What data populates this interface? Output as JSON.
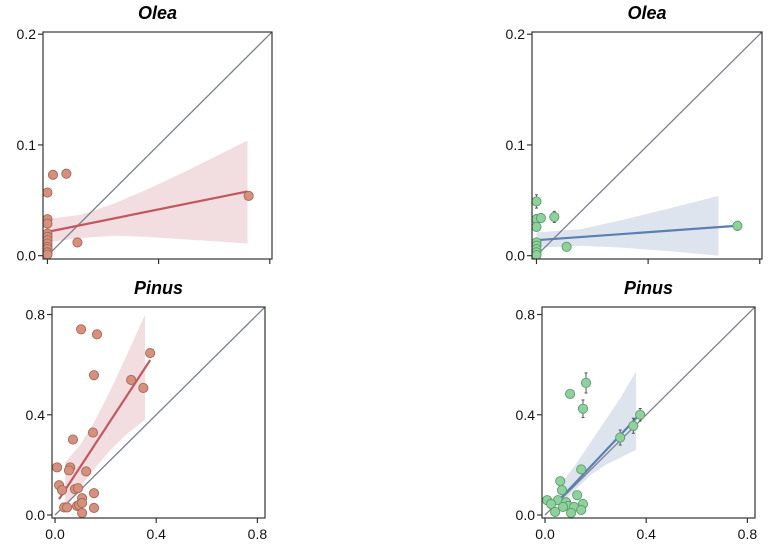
{
  "chart_data": [
    {
      "type": "scatter",
      "panel": "top-left",
      "title": "Olea",
      "xlabel": "",
      "ylabel": "",
      "xlim": [
        -0.004,
        0.202
      ],
      "ylim": [
        -0.003,
        0.202
      ],
      "xticks": [
        0.0,
        0.1,
        0.2
      ],
      "xtick_labels": [
        "",
        "",
        ""
      ],
      "yticks": [
        0.0,
        0.1,
        0.2
      ],
      "ytick_labels": [
        "0.0",
        "0.1",
        "0.2"
      ],
      "grid": false,
      "identity_line": true,
      "colors": {
        "point_fill": "#d6917c",
        "point_stroke": "#a4675b",
        "line": "#c4575d",
        "band": "#f2dde0",
        "identity": "#7a8090"
      },
      "error_bars": false,
      "points": [
        {
          "x": 0.005,
          "y": 0.073
        },
        {
          "x": 0.017,
          "y": 0.074
        },
        {
          "x": 0.0,
          "y": 0.057
        },
        {
          "x": 0.0,
          "y": 0.033
        },
        {
          "x": 0.0,
          "y": 0.029
        },
        {
          "x": 0.0,
          "y": 0.02
        },
        {
          "x": 0.0,
          "y": 0.017
        },
        {
          "x": 0.0,
          "y": 0.014
        },
        {
          "x": 0.0,
          "y": 0.011
        },
        {
          "x": 0.0,
          "y": 0.008
        },
        {
          "x": 0.0,
          "y": 0.006
        },
        {
          "x": 0.0,
          "y": 0.003
        },
        {
          "x": 0.0,
          "y": 0.001
        },
        {
          "x": 0.027,
          "y": 0.012
        },
        {
          "x": 0.181,
          "y": 0.054
        }
      ],
      "fit_line": [
        {
          "x": 0.0,
          "y": 0.0215
        },
        {
          "x": 0.18,
          "y": 0.058
        }
      ],
      "band": {
        "x": [
          0.0,
          0.03,
          0.06,
          0.09,
          0.12,
          0.15,
          0.18
        ],
        "upper": [
          0.033,
          0.037,
          0.047,
          0.06,
          0.074,
          0.089,
          0.104
        ],
        "lower": [
          0.012,
          0.016,
          0.018,
          0.017,
          0.015,
          0.013,
          0.011
        ]
      }
    },
    {
      "type": "scatter",
      "panel": "top-right",
      "title": "Olea",
      "xlabel": "",
      "ylabel": "",
      "xlim": [
        -0.004,
        0.202
      ],
      "ylim": [
        -0.003,
        0.202
      ],
      "xticks": [
        0.0,
        0.1,
        0.2
      ],
      "xtick_labels": [
        "",
        "",
        ""
      ],
      "yticks": [
        0.0,
        0.1,
        0.2
      ],
      "ytick_labels": [
        "0.0",
        "0.1",
        "0.2"
      ],
      "grid": false,
      "identity_line": true,
      "colors": {
        "point_fill": "#8fd19d",
        "point_stroke": "#5c9b6c",
        "line": "#5a7fb2",
        "band": "#dee4ee",
        "identity": "#7a8090",
        "errorbar": "#555555"
      },
      "error_bars": true,
      "points": [
        {
          "x": 0.0,
          "y": 0.049,
          "err": 0.006
        },
        {
          "x": 0.0,
          "y": 0.033,
          "err": 0.004
        },
        {
          "x": 0.004,
          "y": 0.034,
          "err": 0.004
        },
        {
          "x": 0.016,
          "y": 0.035,
          "err": 0.005
        },
        {
          "x": 0.0,
          "y": 0.026,
          "err": 0.003
        },
        {
          "x": 0.0,
          "y": 0.012,
          "err": 0.002
        },
        {
          "x": 0.0,
          "y": 0.009,
          "err": 0.002
        },
        {
          "x": 0.0,
          "y": 0.006,
          "err": 0.002
        },
        {
          "x": 0.0,
          "y": 0.003,
          "err": 0.001
        },
        {
          "x": 0.0,
          "y": 0.0005,
          "err": 0.001
        },
        {
          "x": 0.027,
          "y": 0.008,
          "err": 0.003
        },
        {
          "x": 0.18,
          "y": 0.027,
          "err": 0.004
        }
      ],
      "fit_line": [
        {
          "x": 0.0,
          "y": 0.014
        },
        {
          "x": 0.18,
          "y": 0.027
        }
      ],
      "band": {
        "x": [
          0.0,
          0.04,
          0.08,
          0.12,
          0.163
        ],
        "upper": [
          0.021,
          0.024,
          0.033,
          0.043,
          0.054
        ],
        "lower": [
          0.007,
          0.009,
          0.007,
          0.004,
          0.0
        ]
      }
    },
    {
      "type": "scatter",
      "panel": "bottom-left",
      "title": "Pinus",
      "xlabel": "",
      "ylabel": "",
      "xlim": [
        -0.012,
        0.83
      ],
      "ylim": [
        -0.012,
        0.83
      ],
      "xticks": [
        0.0,
        0.4,
        0.8
      ],
      "xtick_labels": [
        "0.0",
        "0.4",
        "0.8"
      ],
      "yticks": [
        0.0,
        0.4,
        0.8
      ],
      "ytick_labels": [
        "0.0",
        "0.4",
        "0.8"
      ],
      "grid": false,
      "identity_line": true,
      "colors": {
        "point_fill": "#d6917c",
        "point_stroke": "#a4675b",
        "line": "#c4575d",
        "band": "#f2dde0",
        "identity": "#7a8090"
      },
      "error_bars": false,
      "points": [
        {
          "x": 0.103,
          "y": 0.741
        },
        {
          "x": 0.166,
          "y": 0.721
        },
        {
          "x": 0.154,
          "y": 0.558
        },
        {
          "x": 0.301,
          "y": 0.539
        },
        {
          "x": 0.349,
          "y": 0.507
        },
        {
          "x": 0.376,
          "y": 0.646
        },
        {
          "x": 0.15,
          "y": 0.329
        },
        {
          "x": 0.071,
          "y": 0.301
        },
        {
          "x": 0.008,
          "y": 0.19
        },
        {
          "x": 0.06,
          "y": 0.19
        },
        {
          "x": 0.055,
          "y": 0.178
        },
        {
          "x": 0.123,
          "y": 0.174
        },
        {
          "x": 0.016,
          "y": 0.119
        },
        {
          "x": 0.028,
          "y": 0.099
        },
        {
          "x": 0.079,
          "y": 0.103
        },
        {
          "x": 0.091,
          "y": 0.107
        },
        {
          "x": 0.154,
          "y": 0.087
        },
        {
          "x": 0.107,
          "y": 0.067
        },
        {
          "x": 0.036,
          "y": 0.03
        },
        {
          "x": 0.048,
          "y": 0.03
        },
        {
          "x": 0.087,
          "y": 0.036
        },
        {
          "x": 0.095,
          "y": 0.04
        },
        {
          "x": 0.107,
          "y": 0.048
        },
        {
          "x": 0.154,
          "y": 0.028
        },
        {
          "x": 0.107,
          "y": 0.008
        }
      ],
      "fit_line": [
        {
          "x": 0.016,
          "y": 0.063
        },
        {
          "x": 0.376,
          "y": 0.618
        }
      ],
      "band": {
        "x": [
          0.04,
          0.1,
          0.16,
          0.22,
          0.28,
          0.356
        ],
        "upper": [
          0.21,
          0.28,
          0.38,
          0.5,
          0.63,
          0.8
        ],
        "lower": [
          0.03,
          0.11,
          0.19,
          0.26,
          0.32,
          0.38
        ]
      }
    },
    {
      "type": "scatter",
      "panel": "bottom-right",
      "title": "Pinus",
      "xlabel": "",
      "ylabel": "",
      "xlim": [
        -0.012,
        0.83
      ],
      "ylim": [
        -0.012,
        0.83
      ],
      "xticks": [
        0.0,
        0.4,
        0.8
      ],
      "xtick_labels": [
        "0.0",
        "0.4",
        "0.8"
      ],
      "yticks": [
        0.0,
        0.4,
        0.8
      ],
      "ytick_labels": [
        "0.0",
        "0.4",
        "0.8"
      ],
      "grid": false,
      "identity_line": true,
      "colors": {
        "point_fill": "#8fd19d",
        "point_stroke": "#5c9b6c",
        "line": "#5a7fb2",
        "band": "#dee4ee",
        "identity": "#7a8090",
        "errorbar": "#555555"
      },
      "error_bars": true,
      "points": [
        {
          "x": 0.099,
          "y": 0.483,
          "err": 0.01
        },
        {
          "x": 0.162,
          "y": 0.527,
          "err": 0.04
        },
        {
          "x": 0.15,
          "y": 0.424,
          "err": 0.035
        },
        {
          "x": 0.297,
          "y": 0.309,
          "err": 0.03
        },
        {
          "x": 0.349,
          "y": 0.356,
          "err": 0.03
        },
        {
          "x": 0.376,
          "y": 0.4,
          "err": 0.025
        },
        {
          "x": 0.143,
          "y": 0.182,
          "err": 0.01
        },
        {
          "x": 0.06,
          "y": 0.135,
          "err": 0.015
        },
        {
          "x": 0.067,
          "y": 0.099,
          "err": 0.01
        },
        {
          "x": 0.127,
          "y": 0.079,
          "err": 0.008
        },
        {
          "x": 0.008,
          "y": 0.059,
          "err": 0.005
        },
        {
          "x": 0.051,
          "y": 0.059,
          "err": 0.006
        },
        {
          "x": 0.083,
          "y": 0.051,
          "err": 0.006
        },
        {
          "x": 0.024,
          "y": 0.044,
          "err": 0.005
        },
        {
          "x": 0.091,
          "y": 0.036,
          "err": 0.005
        },
        {
          "x": 0.115,
          "y": 0.032,
          "err": 0.005
        },
        {
          "x": 0.15,
          "y": 0.044,
          "err": 0.005
        },
        {
          "x": 0.04,
          "y": 0.012,
          "err": 0.004
        },
        {
          "x": 0.103,
          "y": 0.008,
          "err": 0.004
        },
        {
          "x": 0.143,
          "y": 0.02,
          "err": 0.004
        },
        {
          "x": 0.071,
          "y": 0.032,
          "err": 0.004
        }
      ],
      "fit_line": [
        {
          "x": 0.028,
          "y": 0.03
        },
        {
          "x": 0.376,
          "y": 0.403
        }
      ],
      "band": {
        "x": [
          0.06,
          0.12,
          0.18,
          0.24,
          0.3,
          0.36
        ],
        "upper": [
          0.12,
          0.2,
          0.29,
          0.38,
          0.47,
          0.574
        ],
        "lower": [
          0.04,
          0.1,
          0.16,
          0.2,
          0.23,
          0.26
        ]
      }
    }
  ]
}
